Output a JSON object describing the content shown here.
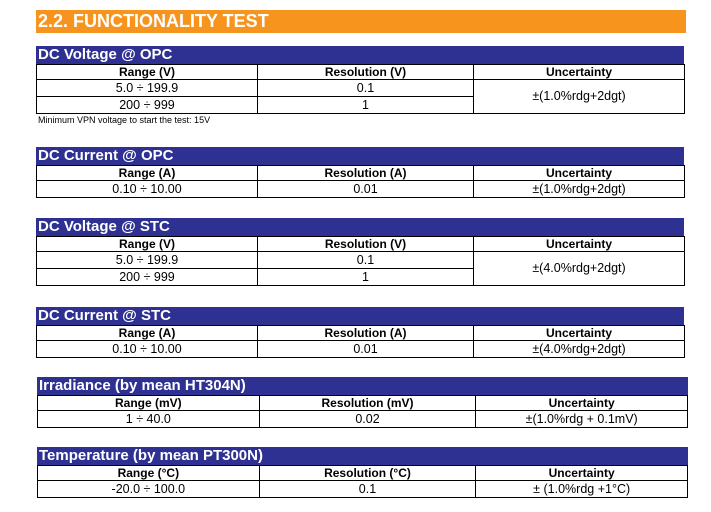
{
  "title": "2.2. FUNCTIONALITY TEST",
  "blocks": [
    {
      "name": "DC Voltage @ OPC",
      "headers": [
        "Range (V)",
        "Resolution (V)",
        "Uncertainty"
      ],
      "rows": [
        [
          "5.0 ÷ 199.9",
          "0.1"
        ],
        [
          "200 ÷ 999",
          "1"
        ]
      ],
      "uncertainty": "±(1.0%rdg+2dgt)",
      "note": "Minimum VPN voltage to start the test: 15V"
    },
    {
      "name": "DC Current @ OPC",
      "headers": [
        "Range (A)",
        "Resolution (A)",
        "Uncertainty"
      ],
      "rows": [
        [
          "0.10 ÷ 10.00",
          "0.01"
        ]
      ],
      "uncertainty": "±(1.0%rdg+2dgt)"
    },
    {
      "name": "DC Voltage @ STC",
      "headers": [
        "Range (V)",
        "Resolution (V)",
        "Uncertainty"
      ],
      "rows": [
        [
          "5.0 ÷ 199.9",
          "0.1"
        ],
        [
          "200 ÷ 999",
          "1"
        ]
      ],
      "uncertainty": "±(4.0%rdg+2dgt)"
    },
    {
      "name": "DC Current @ STC",
      "headers": [
        "Range (A)",
        "Resolution (A)",
        "Uncertainty"
      ],
      "rows": [
        [
          "0.10 ÷ 10.00",
          "0.01"
        ]
      ],
      "uncertainty": "±(4.0%rdg+2dgt)"
    },
    {
      "name": "Irradiance (by mean HT304N)",
      "headers": [
        "Range (mV)",
        "Resolution (mV)",
        "Uncertainty"
      ],
      "rows": [
        [
          "1 ÷ 40.0",
          "0.02"
        ]
      ],
      "uncertainty": "±(1.0%rdg + 0.1mV)"
    },
    {
      "name": "Temperature (by mean PT300N)",
      "headers": [
        "Range (°C)",
        "Resolution (°C)",
        "Uncertainty"
      ],
      "rows": [
        [
          "-20.0 ÷ 100.0",
          "0.1"
        ]
      ],
      "uncertainty": "± (1.0%rdg +1°C)"
    }
  ]
}
